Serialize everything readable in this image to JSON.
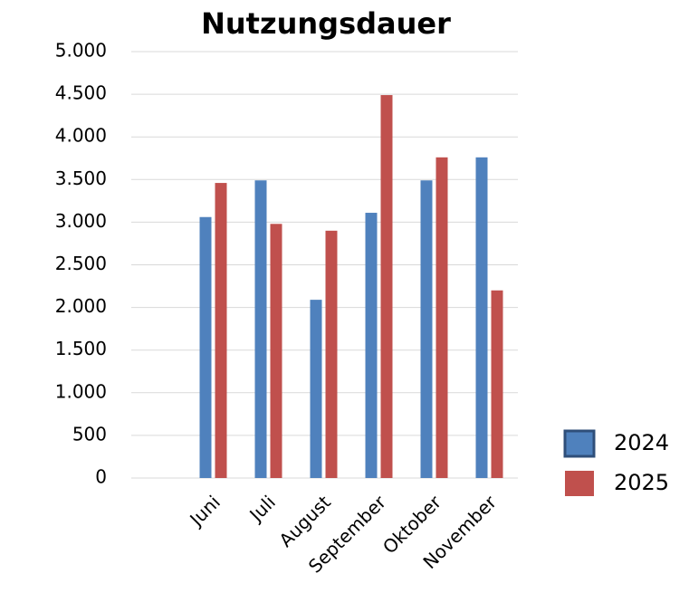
{
  "chart_data": {
    "type": "bar",
    "title": "Nutzungsdauer",
    "categories": [
      null,
      "Juni",
      "Juli",
      "August",
      "September",
      "Oktober",
      "November"
    ],
    "series": [
      {
        "name": "2024",
        "color": "#4f81bd",
        "values": [
          null,
          3060,
          3490,
          2090,
          3110,
          3490,
          3760
        ]
      },
      {
        "name": "2025",
        "color": "#c0504d",
        "values": [
          null,
          3460,
          2980,
          2900,
          4490,
          3760,
          2200
        ]
      }
    ],
    "ylim": [
      0,
      5000
    ],
    "yticks": [
      0,
      500,
      {
        "value": 1000,
        "label": "1.000"
      },
      {
        "value": 1500,
        "label": "1.500"
      },
      {
        "value": 2000,
        "label": "2.000"
      },
      {
        "value": 2500,
        "label": "2.500"
      },
      {
        "value": 3000,
        "label": "3.000"
      },
      {
        "value": 3500,
        "label": "3.500"
      },
      {
        "value": 4000,
        "label": "4.000"
      },
      {
        "value": 4500,
        "label": "4.500"
      },
      {
        "value": 5000,
        "label": "5.000"
      }
    ],
    "grid": true,
    "legend": "right"
  }
}
